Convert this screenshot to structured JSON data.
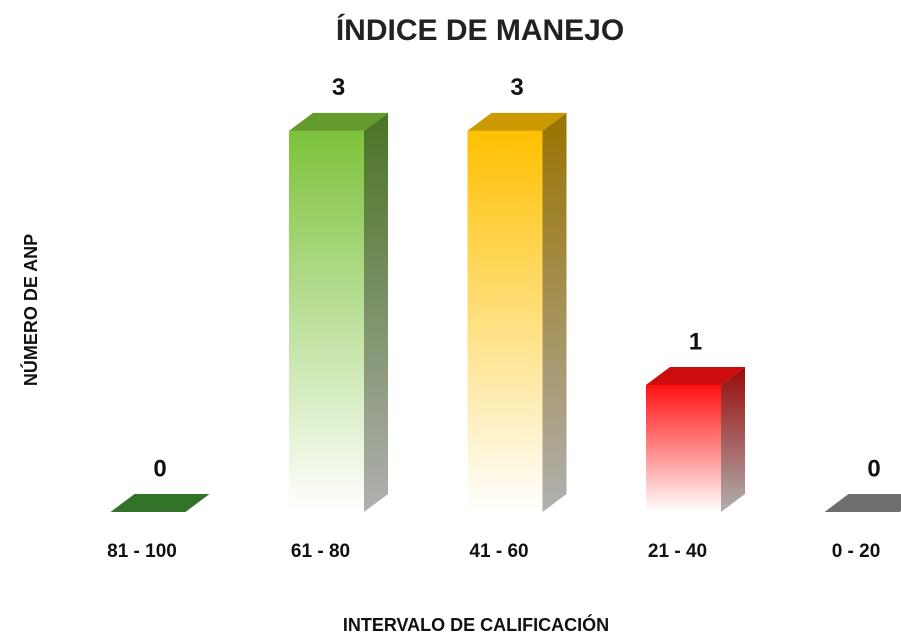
{
  "chart_data": {
    "type": "bar3d",
    "title": "ÍNDICE DE MANEJO",
    "x_label": "INTERVALO DE CALIFICACIÓN",
    "y_label": "NÚMERO DE ANP",
    "categories": [
      "81 - 100",
      "61 - 80",
      "41 - 60",
      "21 - 40",
      "0 - 20"
    ],
    "values": [
      0,
      3,
      3,
      1,
      0
    ],
    "colors": [
      "#3f8f33",
      "#7cc23a",
      "#ffc000",
      "#ff1010",
      "#8a8a8a"
    ],
    "ylim": [
      0,
      3.4
    ]
  }
}
